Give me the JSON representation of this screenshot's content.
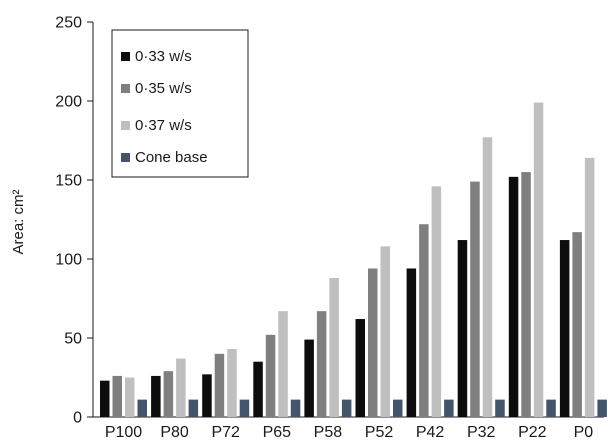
{
  "chart_data": {
    "type": "bar",
    "title": "",
    "xlabel": "",
    "ylabel": "Area: cm²",
    "ylim": [
      0,
      250
    ],
    "yticks": [
      0,
      50,
      100,
      150,
      200,
      250
    ],
    "grid": false,
    "legend_position": "top-left",
    "categories": [
      "P100",
      "P80",
      "P72",
      "P65",
      "P58",
      "P52",
      "P42",
      "P32",
      "P22",
      "P0"
    ],
    "series": [
      {
        "name": "0·33 w/s",
        "color": "#0d0d0d",
        "values": [
          23,
          26,
          27,
          35,
          49,
          62,
          94,
          112,
          152,
          112
        ]
      },
      {
        "name": "0·35 w/s",
        "color": "#7f7f7f",
        "values": [
          26,
          29,
          40,
          52,
          67,
          94,
          122,
          149,
          155,
          117
        ]
      },
      {
        "name": "0·37 w/s",
        "color": "#bfbfbf",
        "values": [
          25,
          37,
          43,
          67,
          88,
          108,
          146,
          177,
          199,
          164
        ]
      },
      {
        "name": "Cone base",
        "color": "#44546a",
        "values": [
          11,
          11,
          11,
          11,
          11,
          11,
          11,
          11,
          11,
          11
        ]
      }
    ]
  }
}
